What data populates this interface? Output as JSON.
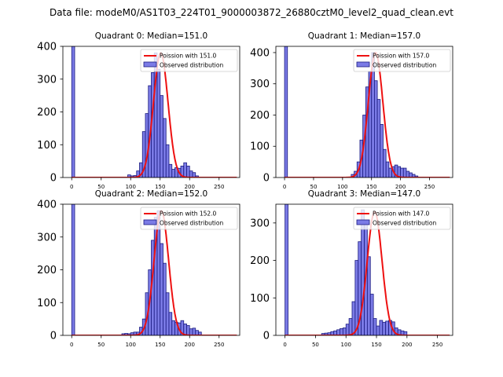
{
  "figure_title": "Data file: modeM0/AS1T03_224T01_9000003872_26880cztM0_level2_quad_clean.evt",
  "colors": {
    "bar_fill": "#7b7be6",
    "bar_edge": "#1a1a80",
    "curve": "#ee1111",
    "axis": "#000000"
  },
  "chart_data": [
    {
      "type": "bar",
      "title": "Quadrant 0: Median=151.0",
      "xlim": [
        -15,
        285
      ],
      "ylim": [
        0,
        400
      ],
      "xticks": [
        0,
        50,
        100,
        150,
        200,
        250
      ],
      "yticks": [
        0,
        100,
        200,
        300,
        400
      ],
      "legend": [
        "Poission with 151.0",
        "Observed distribution"
      ],
      "legend_position": "upper right",
      "bins": {
        "start": 95,
        "width": 5,
        "counts": [
          8,
          5,
          6,
          20,
          45,
          140,
          195,
          280,
          320,
          380,
          330,
          250,
          180,
          100,
          40,
          25,
          30,
          28,
          35,
          45,
          35,
          20,
          15,
          5
        ],
        "zero_bin": {
          "x": 0,
          "width": 5,
          "count": 400
        }
      },
      "poisson": {
        "mu": 151.0,
        "peak": 380,
        "sigma": 12.3
      }
    },
    {
      "type": "bar",
      "title": "Quadrant 1: Median=157.0",
      "xlim": [
        -15,
        290
      ],
      "ylim": [
        0,
        420
      ],
      "xticks": [
        0,
        50,
        100,
        150,
        200,
        250
      ],
      "yticks": [
        0,
        100,
        200,
        300,
        400
      ],
      "legend": [
        "Poission with 157.0",
        "Observed distribution"
      ],
      "legend_position": "upper right",
      "bins": {
        "start": 115,
        "width": 5,
        "counts": [
          10,
          20,
          50,
          120,
          200,
          290,
          340,
          400,
          310,
          250,
          170,
          90,
          50,
          30,
          35,
          40,
          35,
          30,
          30,
          20,
          15,
          10,
          5
        ],
        "zero_bin": {
          "x": 0,
          "width": 5,
          "count": 420
        }
      },
      "poisson": {
        "mu": 157.0,
        "peak": 400,
        "sigma": 12.5
      }
    },
    {
      "type": "bar",
      "title": "Quadrant 2: Median=152.0",
      "xlim": [
        -15,
        285
      ],
      "ylim": [
        0,
        400
      ],
      "xticks": [
        0,
        50,
        100,
        150,
        200,
        250
      ],
      "yticks": [
        0,
        100,
        200,
        300,
        400
      ],
      "legend": [
        "Poission with 152.0",
        "Observed distribution"
      ],
      "legend_position": "upper right",
      "bins": {
        "start": 85,
        "width": 5,
        "counts": [
          5,
          6,
          5,
          8,
          10,
          10,
          25,
          50,
          130,
          200,
          290,
          360,
          380,
          280,
          220,
          130,
          70,
          45,
          40,
          38,
          45,
          35,
          30,
          20,
          22,
          15,
          10
        ],
        "zero_bin": {
          "x": 0,
          "width": 5,
          "count": 400
        }
      },
      "poisson": {
        "mu": 152.0,
        "peak": 380,
        "sigma": 12.3
      }
    },
    {
      "type": "bar",
      "title": "Quadrant 3: Median=147.0",
      "xlim": [
        -15,
        275
      ],
      "ylim": [
        0,
        350
      ],
      "xticks": [
        0,
        50,
        100,
        150,
        200,
        250
      ],
      "yticks": [
        0,
        100,
        200,
        300
      ],
      "legend": [
        "Poission with 147.0",
        "Observed distribution"
      ],
      "legend_position": "upper right",
      "bins": {
        "start": 60,
        "width": 5,
        "counts": [
          5,
          6,
          7,
          10,
          12,
          15,
          18,
          20,
          30,
          45,
          90,
          200,
          250,
          335,
          300,
          210,
          110,
          45,
          25,
          40,
          35,
          38,
          40,
          36,
          20,
          15,
          12,
          10
        ],
        "zero_bin": {
          "x": 0,
          "width": 5,
          "count": 350
        }
      },
      "poisson": {
        "mu": 147.0,
        "peak": 330,
        "sigma": 12.1
      }
    }
  ]
}
